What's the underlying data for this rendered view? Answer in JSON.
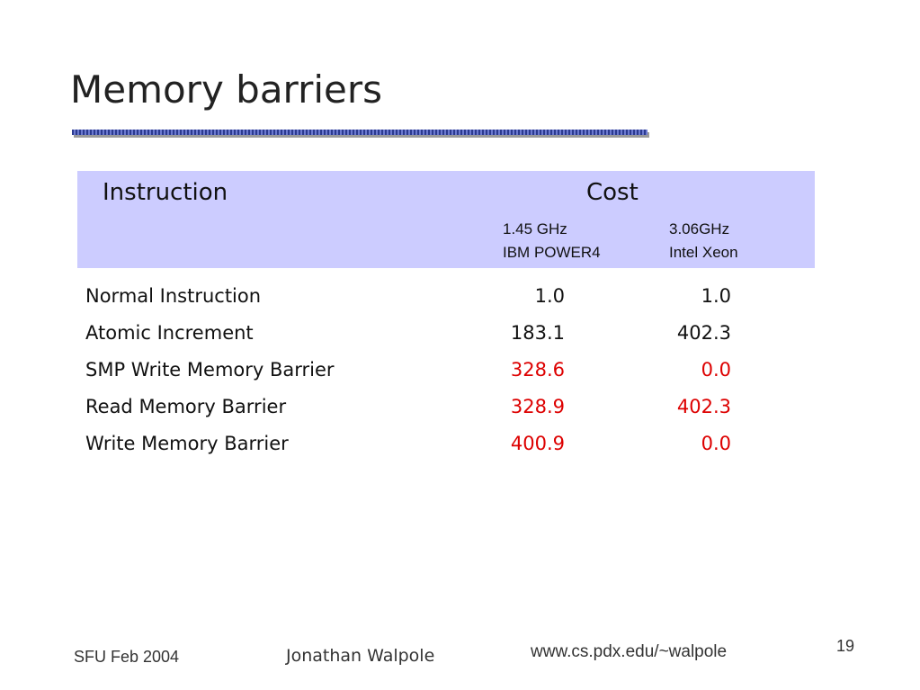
{
  "slide": {
    "title": "Memory barriers"
  },
  "table": {
    "header": {
      "instruction": "Instruction",
      "cost": "Cost",
      "columns": [
        {
          "speed": "1.45 GHz",
          "cpu": "IBM POWER4"
        },
        {
          "speed": "3.06GHz",
          "cpu": "Intel Xeon"
        }
      ]
    },
    "rows": [
      {
        "name": "Normal Instruction",
        "v1": "1.0",
        "v2": "1.0",
        "v1_red": false,
        "v2_red": false
      },
      {
        "name": "Atomic Increment",
        "v1": "183.1",
        "v2": "402.3",
        "v1_red": false,
        "v2_red": false
      },
      {
        "name": "SMP Write Memory Barrier",
        "v1": "328.6",
        "v2": "0.0",
        "v1_red": true,
        "v2_red": true
      },
      {
        "name": "Read Memory Barrier",
        "v1": "328.9",
        "v2": "402.3",
        "v1_red": true,
        "v2_red": true
      },
      {
        "name": "Write Memory Barrier",
        "v1": "400.9",
        "v2": "0.0",
        "v1_red": true,
        "v2_red": true
      }
    ]
  },
  "footer": {
    "date": "SFU Feb 2004",
    "author": "Jonathan Walpole",
    "url": "www.cs.pdx.edu/~walpole",
    "page": "19"
  },
  "colors": {
    "header_band": "#ccccff",
    "highlight": "#dd0000",
    "rule": "#2b3a8f"
  }
}
